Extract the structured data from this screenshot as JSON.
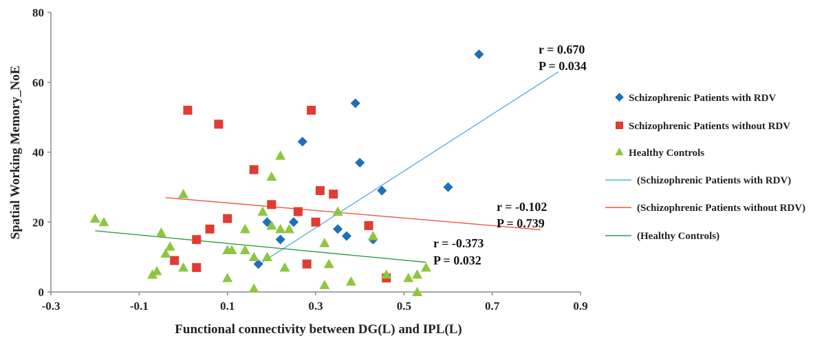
{
  "chart_data": {
    "type": "scatter",
    "title": "",
    "xlabel": "Functional connectivity  between DG(L) and IPL(L)",
    "ylabel": "Spatial Working Memory_NoE",
    "xlim": [
      -0.3,
      0.9
    ],
    "ylim": [
      0,
      80
    ],
    "x_ticks": [
      "-0.3",
      "-0.1",
      "0.1",
      "0.3",
      "0.5",
      "0.7",
      "0.9"
    ],
    "y_ticks": [
      "0",
      "20",
      "40",
      "60",
      "80"
    ],
    "grid": false,
    "legend_position": "right",
    "series": [
      {
        "name": "Schizophrenic Patients with RDV",
        "marker": "diamond",
        "color": "#1f6fba",
        "points": [
          [
            0.67,
            68
          ],
          [
            0.39,
            54
          ],
          [
            0.27,
            43
          ],
          [
            0.4,
            37
          ],
          [
            0.45,
            29
          ],
          [
            0.6,
            30
          ],
          [
            0.19,
            20
          ],
          [
            0.25,
            20
          ],
          [
            0.22,
            15
          ],
          [
            0.35,
            18
          ],
          [
            0.37,
            16
          ],
          [
            0.43,
            15
          ],
          [
            0.17,
            8
          ]
        ]
      },
      {
        "name": "Schizophrenic Patients without RDV",
        "marker": "square",
        "color": "#e03c31",
        "points": [
          [
            0.01,
            52
          ],
          [
            0.29,
            52
          ],
          [
            0.08,
            48
          ],
          [
            0.16,
            35
          ],
          [
            0.31,
            29
          ],
          [
            0.34,
            28
          ],
          [
            0.2,
            25
          ],
          [
            0.26,
            23
          ],
          [
            0.1,
            21
          ],
          [
            0.3,
            20
          ],
          [
            0.42,
            19
          ],
          [
            0.06,
            18
          ],
          [
            0.03,
            15
          ],
          [
            -0.02,
            9
          ],
          [
            0.03,
            7
          ],
          [
            0.28,
            8
          ],
          [
            0.46,
            4
          ]
        ]
      },
      {
        "name": "Healthy Controls",
        "marker": "triangle",
        "color": "#8dc63f",
        "points": [
          [
            -0.2,
            21
          ],
          [
            -0.18,
            20
          ],
          [
            0.22,
            39
          ],
          [
            0.2,
            33
          ],
          [
            0.0,
            28
          ],
          [
            0.35,
            23
          ],
          [
            0.18,
            23
          ],
          [
            0.2,
            19
          ],
          [
            0.22,
            18
          ],
          [
            0.24,
            18
          ],
          [
            0.14,
            18
          ],
          [
            -0.05,
            17
          ],
          [
            0.43,
            16
          ],
          [
            0.32,
            14
          ],
          [
            -0.03,
            13
          ],
          [
            0.1,
            12
          ],
          [
            0.11,
            12
          ],
          [
            0.14,
            12
          ],
          [
            0.16,
            10
          ],
          [
            0.19,
            10
          ],
          [
            -0.04,
            11
          ],
          [
            0.33,
            8
          ],
          [
            0.0,
            7
          ],
          [
            0.23,
            7
          ],
          [
            -0.07,
            5
          ],
          [
            -0.06,
            6
          ],
          [
            0.1,
            4
          ],
          [
            0.38,
            3
          ],
          [
            0.32,
            2
          ],
          [
            0.51,
            4
          ],
          [
            0.53,
            5
          ],
          [
            0.55,
            7
          ],
          [
            0.46,
            5
          ],
          [
            0.53,
            0
          ],
          [
            0.16,
            1
          ]
        ]
      }
    ],
    "fit_lines": [
      {
        "name": "(Schizophrenic Patients with RDV)",
        "color": "#5aaedc",
        "x": [
          0.17,
          0.85
        ],
        "y": [
          7.8,
          63.0
        ],
        "r_label": "r = 0.670",
        "p_label": "P = 0.034"
      },
      {
        "name": "(Schizophrenic Patients without RDV)",
        "color": "#f0533d",
        "x": [
          -0.04,
          0.81
        ],
        "y": [
          27.0,
          17.8
        ],
        "r_label": "r = -0.102",
        "p_label": "P = 0.739"
      },
      {
        "name": "(Healthy Controls)",
        "color": "#2e9e47",
        "x": [
          -0.2,
          0.55
        ],
        "y": [
          17.5,
          8.5
        ],
        "r_label": "r = -0.373",
        "p_label": "P = 0.032"
      }
    ]
  }
}
